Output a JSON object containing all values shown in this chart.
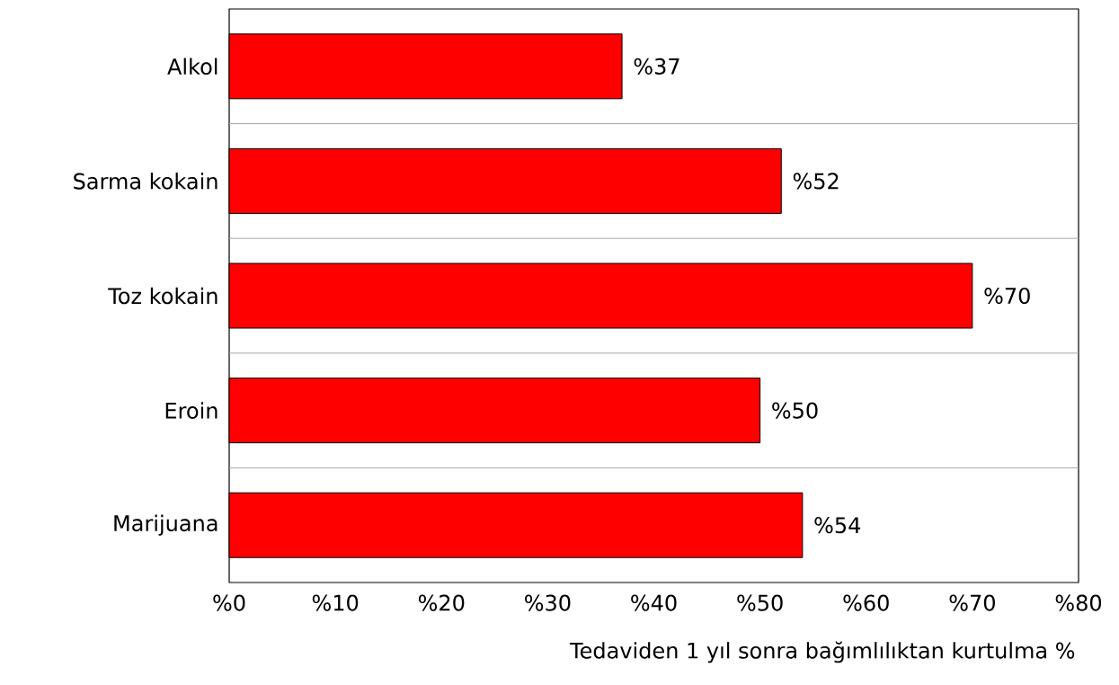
{
  "chart_data": {
    "type": "bar",
    "orientation": "horizontal",
    "categories": [
      "Alkol",
      "Sarma kokain",
      "Toz kokain",
      "Eroin",
      "Marijuana"
    ],
    "values": [
      37,
      52,
      70,
      50,
      54
    ],
    "value_labels": [
      "%37",
      "%52",
      "%70",
      "%50",
      "%54"
    ],
    "color": "#ff0000",
    "xlabel": "Tedaviden 1 yıl sonra bağımlılıktan kurtulma %",
    "xlim": [
      0,
      80
    ],
    "xticks": [
      {
        "value": 0,
        "label": "%0"
      },
      {
        "value": 10,
        "label": "%10"
      },
      {
        "value": 20,
        "label": "%20"
      },
      {
        "value": 30,
        "label": "%30"
      },
      {
        "value": 40,
        "label": "%40"
      },
      {
        "value": 50,
        "label": "%50"
      },
      {
        "value": 60,
        "label": "%60"
      },
      {
        "value": 70,
        "label": "%70"
      },
      {
        "value": 80,
        "label": "%80"
      }
    ],
    "grid": "y"
  }
}
